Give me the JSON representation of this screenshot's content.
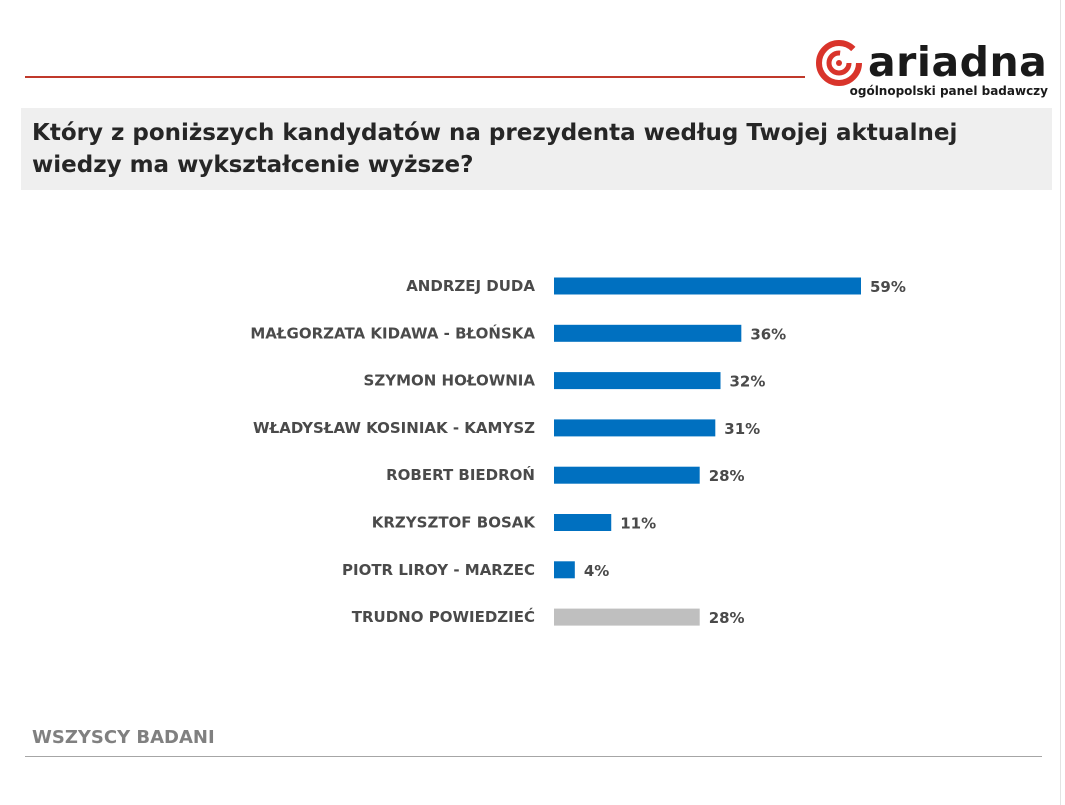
{
  "logo": {
    "brand": "ariadna",
    "tagline": "ogólnopolski panel badawczy",
    "accent_color": "#d9342b",
    "icon": "ariadna-spiral-icon"
  },
  "question": "Który z poniższych kandydatów na prezydenta według Twojej aktualnej wiedzy ma wykształcenie wyższe?",
  "footer": {
    "base": "WSZYSCY BADANI"
  },
  "chart_data": {
    "type": "bar",
    "orientation": "horizontal",
    "categories": [
      "ANDRZEJ DUDA",
      "MAŁGORZATA KIDAWA - BŁOŃSKA",
      "SZYMON HOŁOWNIA",
      "WŁADYSŁAW KOSINIAK - KAMYSZ",
      "ROBERT BIEDROŃ",
      "KRZYSZTOF BOSAK",
      "PIOTR LIROY - MARZEC",
      "TRUDNO POWIEDZIEĆ"
    ],
    "values": [
      59,
      36,
      32,
      31,
      28,
      11,
      4,
      28
    ],
    "value_labels": [
      "59%",
      "36%",
      "32%",
      "31%",
      "28%",
      "11%",
      "4%",
      "28%"
    ],
    "bar_colors": [
      "#0070c0",
      "#0070c0",
      "#0070c0",
      "#0070c0",
      "#0070c0",
      "#0070c0",
      "#0070c0",
      "#bfbfbf"
    ],
    "unit": "%",
    "xlim": [
      0,
      59
    ],
    "grid": false,
    "legend": "none"
  }
}
